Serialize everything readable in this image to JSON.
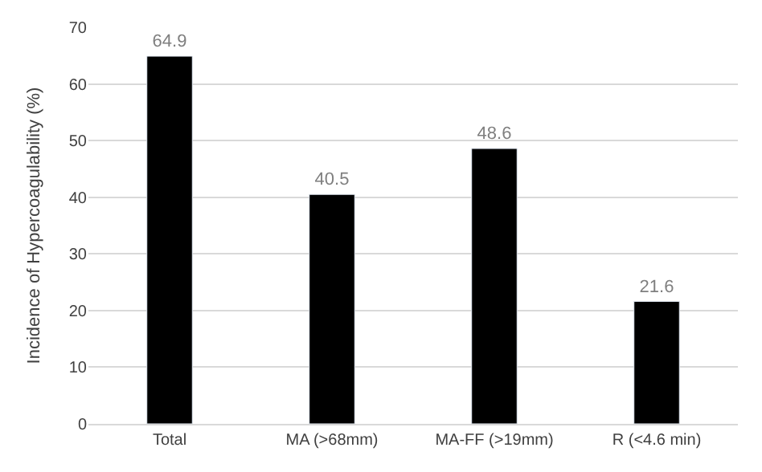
{
  "chart_data": {
    "type": "bar",
    "ylabel": "Incidence of Hypercoagulability (%)",
    "categories": [
      "Total",
      "MA (>68mm)",
      "MA-FF (>19mm)",
      "R (<4.6 min)"
    ],
    "values": [
      64.9,
      40.5,
      48.6,
      21.6
    ],
    "color": "#000000",
    "ylim": [
      0,
      70
    ],
    "yticks": [
      0,
      10,
      20,
      30,
      40,
      50,
      60,
      70
    ],
    "grid": "y",
    "data_labels": true
  }
}
